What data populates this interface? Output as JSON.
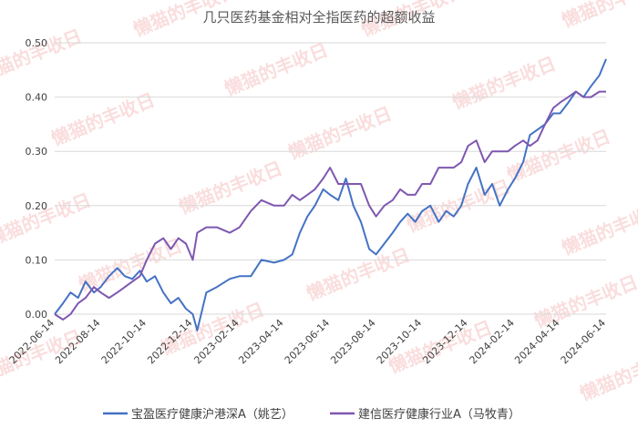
{
  "watermark": "懒猫的丰收日",
  "chart_data": {
    "type": "line",
    "title": "几只医药基金相对全指医药的超额收益",
    "xlabel": "",
    "ylabel": "",
    "ylim": [
      0,
      0.5
    ],
    "y_ticks": [
      "0.00",
      "0.10",
      "0.20",
      "0.30",
      "0.40",
      "0.50"
    ],
    "x_ticks": [
      "2022-06-14",
      "2022-08-14",
      "2022-10-14",
      "2022-12-14",
      "2023-02-14",
      "2023-04-14",
      "2023-06-14",
      "2023-08-14",
      "2023-10-14",
      "2023-12-14",
      "2024-02-14",
      "2024-04-14",
      "2024-06-14"
    ],
    "grid": "horizontal",
    "legend_position": "bottom",
    "series": [
      {
        "name": "宝盈医疗健康沪港深A（姚艺）",
        "color": "#4472c4",
        "x": [
          "2022-06-14",
          "2022-06-25",
          "2022-07-05",
          "2022-07-15",
          "2022-07-25",
          "2022-08-05",
          "2022-08-14",
          "2022-08-25",
          "2022-09-05",
          "2022-09-15",
          "2022-09-25",
          "2022-10-05",
          "2022-10-14",
          "2022-10-25",
          "2022-11-05",
          "2022-11-15",
          "2022-11-25",
          "2022-12-05",
          "2022-12-14",
          "2022-12-20",
          "2023-01-01",
          "2023-01-15",
          "2023-02-01",
          "2023-02-14",
          "2023-03-01",
          "2023-03-15",
          "2023-04-01",
          "2023-04-14",
          "2023-04-25",
          "2023-05-05",
          "2023-05-15",
          "2023-05-25",
          "2023-06-05",
          "2023-06-14",
          "2023-06-25",
          "2023-07-05",
          "2023-07-15",
          "2023-07-25",
          "2023-08-05",
          "2023-08-14",
          "2023-08-25",
          "2023-09-05",
          "2023-09-15",
          "2023-09-25",
          "2023-10-05",
          "2023-10-14",
          "2023-10-25",
          "2023-11-05",
          "2023-11-15",
          "2023-11-25",
          "2023-12-05",
          "2023-12-14",
          "2023-12-25",
          "2024-01-05",
          "2024-01-15",
          "2024-01-25",
          "2024-02-05",
          "2024-02-14",
          "2024-02-25",
          "2024-03-05",
          "2024-03-15",
          "2024-03-25",
          "2024-04-05",
          "2024-04-14",
          "2024-04-25",
          "2024-05-05",
          "2024-05-15",
          "2024-05-25",
          "2024-06-05",
          "2024-06-14"
        ],
        "values": [
          0.0,
          0.02,
          0.04,
          0.03,
          0.06,
          0.04,
          0.05,
          0.07,
          0.085,
          0.07,
          0.065,
          0.08,
          0.06,
          0.07,
          0.04,
          0.02,
          0.03,
          0.01,
          0.0,
          -0.03,
          0.04,
          0.05,
          0.065,
          0.07,
          0.07,
          0.1,
          0.095,
          0.1,
          0.11,
          0.15,
          0.18,
          0.2,
          0.23,
          0.22,
          0.21,
          0.25,
          0.2,
          0.17,
          0.12,
          0.11,
          0.13,
          0.15,
          0.17,
          0.185,
          0.17,
          0.19,
          0.2,
          0.17,
          0.19,
          0.18,
          0.2,
          0.24,
          0.27,
          0.22,
          0.24,
          0.2,
          0.23,
          0.25,
          0.28,
          0.33,
          0.34,
          0.35,
          0.37,
          0.37,
          0.39,
          0.41,
          0.4,
          0.42,
          0.44,
          0.47
        ]
      },
      {
        "name": "建信医疗健康行业A（马牧青）",
        "color": "#7e57b0",
        "x": [
          "2022-06-14",
          "2022-06-25",
          "2022-07-05",
          "2022-07-15",
          "2022-07-25",
          "2022-08-05",
          "2022-08-14",
          "2022-08-25",
          "2022-09-05",
          "2022-09-15",
          "2022-09-25",
          "2022-10-05",
          "2022-10-14",
          "2022-10-25",
          "2022-11-05",
          "2022-11-15",
          "2022-11-25",
          "2022-12-05",
          "2022-12-14",
          "2022-12-20",
          "2023-01-01",
          "2023-01-15",
          "2023-02-01",
          "2023-02-14",
          "2023-03-01",
          "2023-03-15",
          "2023-04-01",
          "2023-04-14",
          "2023-04-25",
          "2023-05-05",
          "2023-05-15",
          "2023-05-25",
          "2023-06-05",
          "2023-06-14",
          "2023-06-25",
          "2023-07-05",
          "2023-07-15",
          "2023-07-25",
          "2023-08-05",
          "2023-08-14",
          "2023-08-25",
          "2023-09-05",
          "2023-09-15",
          "2023-09-25",
          "2023-10-05",
          "2023-10-14",
          "2023-10-25",
          "2023-11-05",
          "2023-11-15",
          "2023-11-25",
          "2023-12-05",
          "2023-12-14",
          "2023-12-25",
          "2024-01-05",
          "2024-01-15",
          "2024-01-25",
          "2024-02-05",
          "2024-02-14",
          "2024-02-25",
          "2024-03-05",
          "2024-03-15",
          "2024-03-25",
          "2024-04-05",
          "2024-04-14",
          "2024-04-25",
          "2024-05-05",
          "2024-05-15",
          "2024-05-25",
          "2024-06-05",
          "2024-06-14"
        ],
        "values": [
          0.0,
          -0.01,
          0.0,
          0.02,
          0.03,
          0.05,
          0.04,
          0.03,
          0.04,
          0.05,
          0.06,
          0.07,
          0.1,
          0.13,
          0.14,
          0.12,
          0.14,
          0.13,
          0.1,
          0.15,
          0.16,
          0.16,
          0.15,
          0.16,
          0.19,
          0.21,
          0.2,
          0.2,
          0.22,
          0.21,
          0.22,
          0.23,
          0.25,
          0.27,
          0.24,
          0.24,
          0.24,
          0.24,
          0.2,
          0.18,
          0.2,
          0.21,
          0.23,
          0.22,
          0.22,
          0.24,
          0.24,
          0.27,
          0.27,
          0.27,
          0.28,
          0.31,
          0.32,
          0.28,
          0.3,
          0.3,
          0.3,
          0.31,
          0.32,
          0.31,
          0.32,
          0.35,
          0.38,
          0.39,
          0.4,
          0.41,
          0.4,
          0.4,
          0.41,
          0.41
        ]
      }
    ]
  }
}
